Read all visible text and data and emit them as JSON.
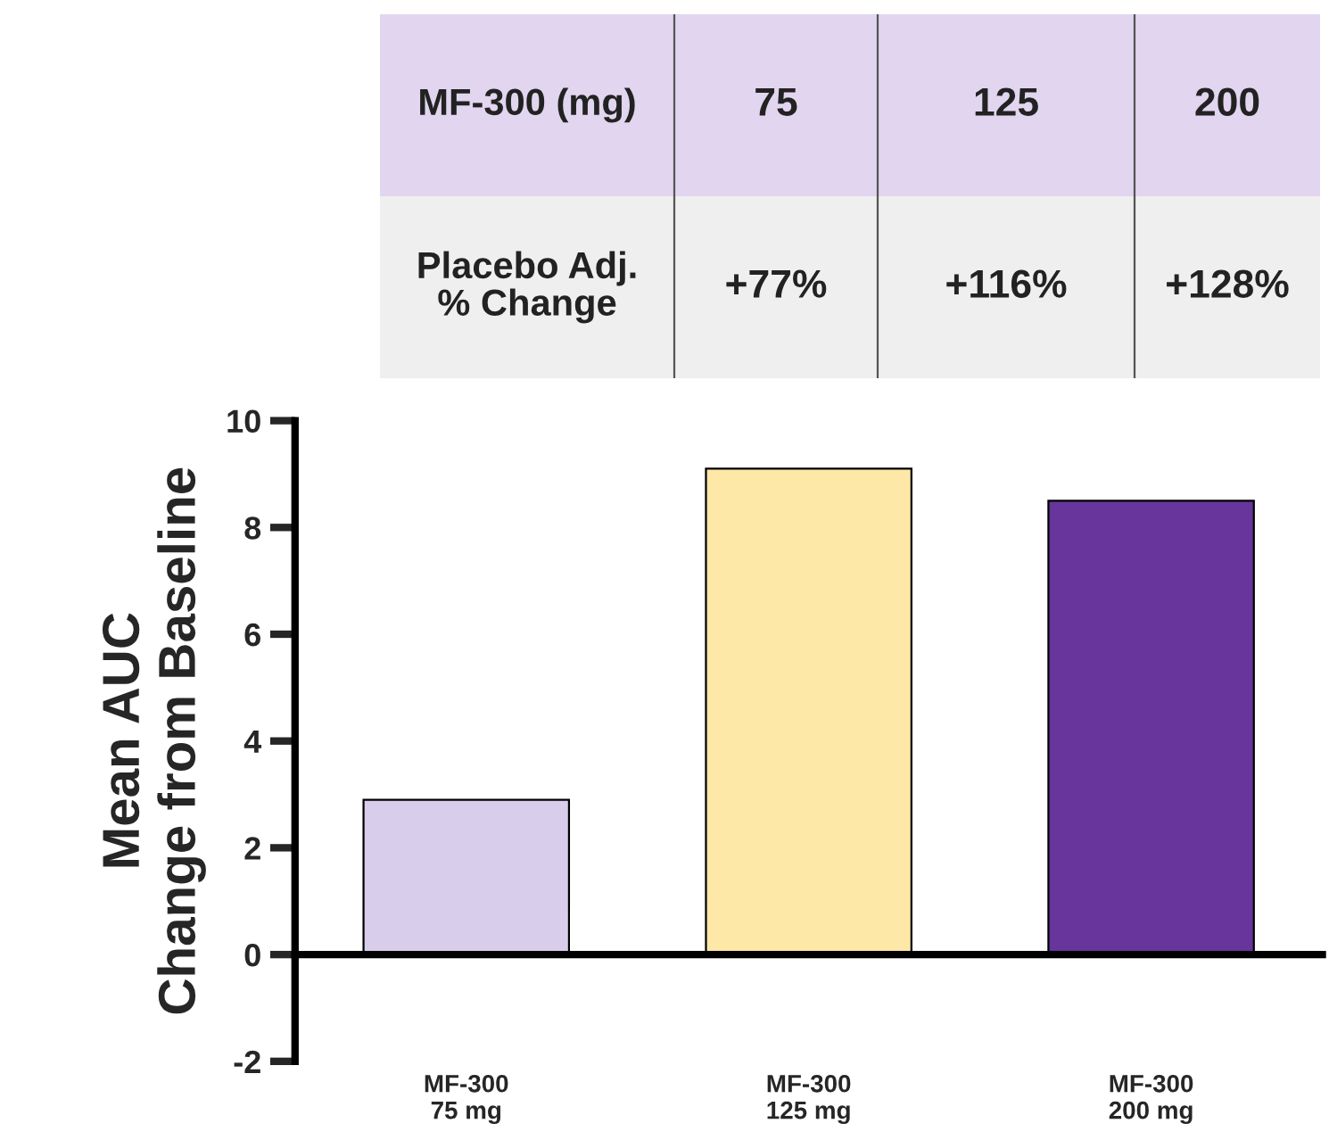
{
  "chart_data": {
    "type": "bar",
    "ylabel": "Mean AUC\nChange from Baseline",
    "categories": [
      "MF-300\n75 mg",
      "MF-300\n125 mg",
      "MF-300\n200 mg"
    ],
    "values": [
      2.9,
      9.1,
      8.5
    ],
    "colors": [
      "#d9cdec",
      "#fde8a8",
      "#67359b"
    ],
    "ylim": [
      -2,
      10
    ],
    "yticks": [
      -2,
      0,
      2,
      4,
      6,
      8,
      10
    ],
    "annotations": [
      "MF-300 (mg)",
      "75",
      "125",
      "200",
      "Placebo Adj.\n% Change",
      "+77%",
      "+116%",
      "+128%"
    ]
  }
}
